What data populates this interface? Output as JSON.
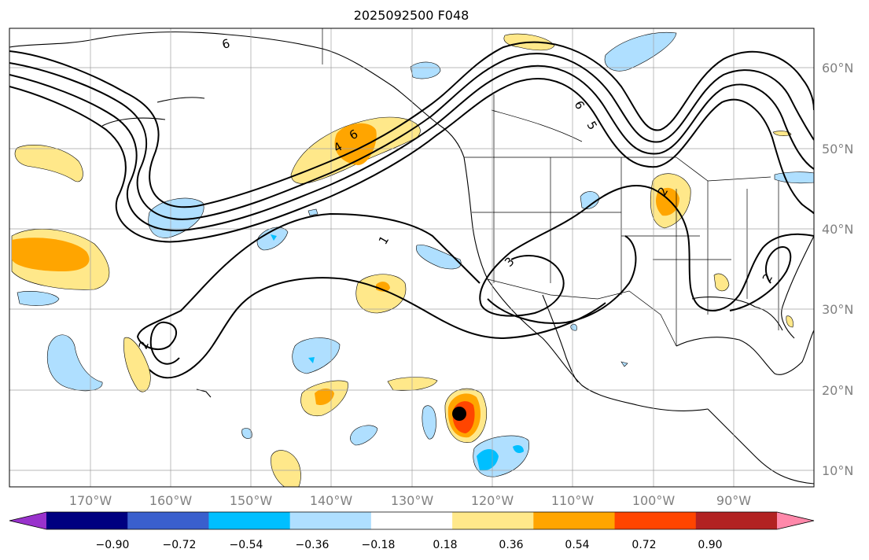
{
  "map": {
    "title": "2025092500 F048",
    "lon_labels": [
      "170°W",
      "160°W",
      "150°W",
      "140°W",
      "130°W",
      "120°W",
      "110°W",
      "100°W",
      "90°W"
    ],
    "lat_labels": [
      "60°N",
      "50°N",
      "40°N",
      "30°N",
      "20°N",
      "10°N"
    ],
    "extent": {
      "lon": [
        -180,
        -80
      ],
      "lat": [
        8,
        66
      ]
    },
    "contour_labels": [
      "6",
      "6",
      "6",
      "5",
      "4",
      "3",
      "2",
      "2",
      "2",
      "1"
    ],
    "marker": {
      "lon": -124.4,
      "lat": 17.0
    }
  },
  "colorbar": {
    "tick_labels": [
      "−0.90",
      "−0.72",
      "−0.54",
      "−0.36",
      "−0.18",
      "0.18",
      "0.36",
      "0.54",
      "0.72",
      "0.90"
    ],
    "colors": [
      "#9932cc",
      "#000080",
      "#3a5fcd",
      "#00bfff",
      "#afdfff",
      "#ffffff",
      "#ffe88a",
      "#ffa500",
      "#ff4500",
      "#b22222",
      "#ff88aa"
    ]
  }
}
